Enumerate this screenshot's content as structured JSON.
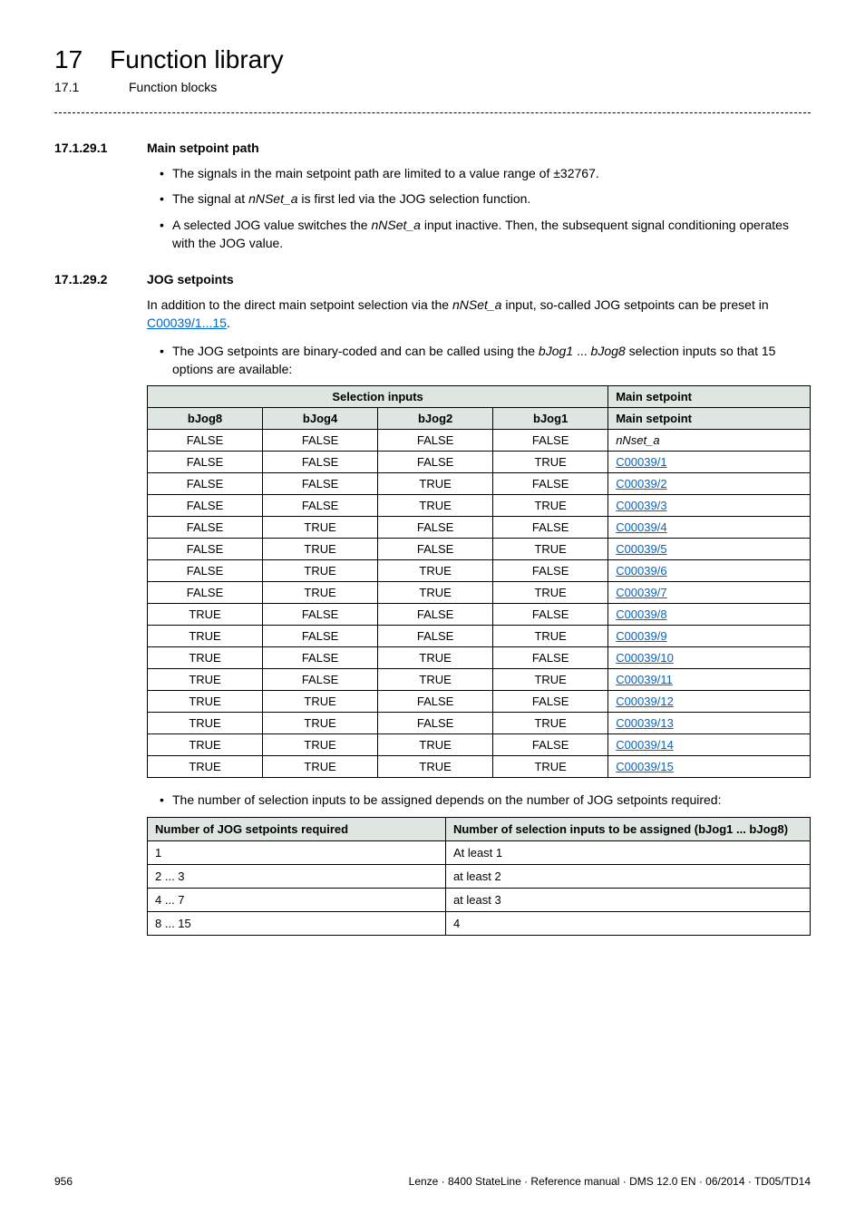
{
  "chapter": {
    "num": "17",
    "title": "Function library"
  },
  "sub": {
    "num": "17.1",
    "title": "Function blocks"
  },
  "sec1": {
    "num": "17.1.29.1",
    "title": "Main setpoint path",
    "b1": "The signals in the main setpoint path are limited to a value range of ±32767.",
    "b2a": "The signal at ",
    "b2i": "nNSet_a",
    "b2b": " is first led via the JOG selection function.",
    "b3a": "A selected JOG value switches the ",
    "b3i": "nNSet_a",
    "b3b": " input inactive. Then, the subsequent signal conditioning operates with the JOG value."
  },
  "sec2": {
    "num": "17.1.29.2",
    "title": "JOG setpoints",
    "p1a": "In addition to the direct main setpoint selection via the ",
    "p1i": "nNSet_a",
    "p1b": " input, so-called JOG setpoints can be preset in ",
    "p1link": "C00039/1...15",
    "p1c": ".",
    "b1a": "The JOG setpoints are binary-coded and can be called using the ",
    "b1i1": "bJog1",
    "b1mid": " ... ",
    "b1i2": "bJog8",
    "b1b": " selection inputs so that 15 options are available:",
    "b2": "The number of selection inputs to be assigned depends on the number of JOG setpoints required:"
  },
  "tbl1": {
    "h_sel": "Selection inputs",
    "h_main": "Main setpoint",
    "h_main2": "Main setpoint",
    "cols": [
      "bJog8",
      "bJog4",
      "bJog2",
      "bJog1"
    ],
    "rows": [
      {
        "v": [
          "FALSE",
          "FALSE",
          "FALSE",
          "FALSE"
        ],
        "m": "nNset_a",
        "link": false,
        "italic": true
      },
      {
        "v": [
          "FALSE",
          "FALSE",
          "FALSE",
          "TRUE"
        ],
        "m": "C00039/1",
        "link": true
      },
      {
        "v": [
          "FALSE",
          "FALSE",
          "TRUE",
          "FALSE"
        ],
        "m": "C00039/2",
        "link": true
      },
      {
        "v": [
          "FALSE",
          "FALSE",
          "TRUE",
          "TRUE"
        ],
        "m": "C00039/3",
        "link": true
      },
      {
        "v": [
          "FALSE",
          "TRUE",
          "FALSE",
          "FALSE"
        ],
        "m": "C00039/4",
        "link": true
      },
      {
        "v": [
          "FALSE",
          "TRUE",
          "FALSE",
          "TRUE"
        ],
        "m": "C00039/5",
        "link": true
      },
      {
        "v": [
          "FALSE",
          "TRUE",
          "TRUE",
          "FALSE"
        ],
        "m": "C00039/6",
        "link": true
      },
      {
        "v": [
          "FALSE",
          "TRUE",
          "TRUE",
          "TRUE"
        ],
        "m": "C00039/7",
        "link": true
      },
      {
        "v": [
          "TRUE",
          "FALSE",
          "FALSE",
          "FALSE"
        ],
        "m": "C00039/8",
        "link": true
      },
      {
        "v": [
          "TRUE",
          "FALSE",
          "FALSE",
          "TRUE"
        ],
        "m": "C00039/9",
        "link": true
      },
      {
        "v": [
          "TRUE",
          "FALSE",
          "TRUE",
          "FALSE"
        ],
        "m": "C00039/10",
        "link": true
      },
      {
        "v": [
          "TRUE",
          "FALSE",
          "TRUE",
          "TRUE"
        ],
        "m": "C00039/11",
        "link": true
      },
      {
        "v": [
          "TRUE",
          "TRUE",
          "FALSE",
          "FALSE"
        ],
        "m": "C00039/12",
        "link": true
      },
      {
        "v": [
          "TRUE",
          "TRUE",
          "FALSE",
          "TRUE"
        ],
        "m": "C00039/13",
        "link": true
      },
      {
        "v": [
          "TRUE",
          "TRUE",
          "TRUE",
          "FALSE"
        ],
        "m": "C00039/14",
        "link": true
      },
      {
        "v": [
          "TRUE",
          "TRUE",
          "TRUE",
          "TRUE"
        ],
        "m": "C00039/15",
        "link": true
      }
    ]
  },
  "tbl2": {
    "h1": "Number of JOG setpoints required",
    "h2": "Number of selection inputs to be assigned (bJog1 ... bJog8)",
    "rows": [
      {
        "a": "1",
        "b": "At least 1"
      },
      {
        "a": "2 ... 3",
        "b": "at least 2"
      },
      {
        "a": "4 ... 7",
        "b": "at least 3"
      },
      {
        "a": "8 ... 15",
        "b": "4"
      }
    ]
  },
  "footer": {
    "page": "956",
    "info": "Lenze · 8400 StateLine · Reference manual · DMS 12.0 EN · 06/2014 · TD05/TD14"
  }
}
